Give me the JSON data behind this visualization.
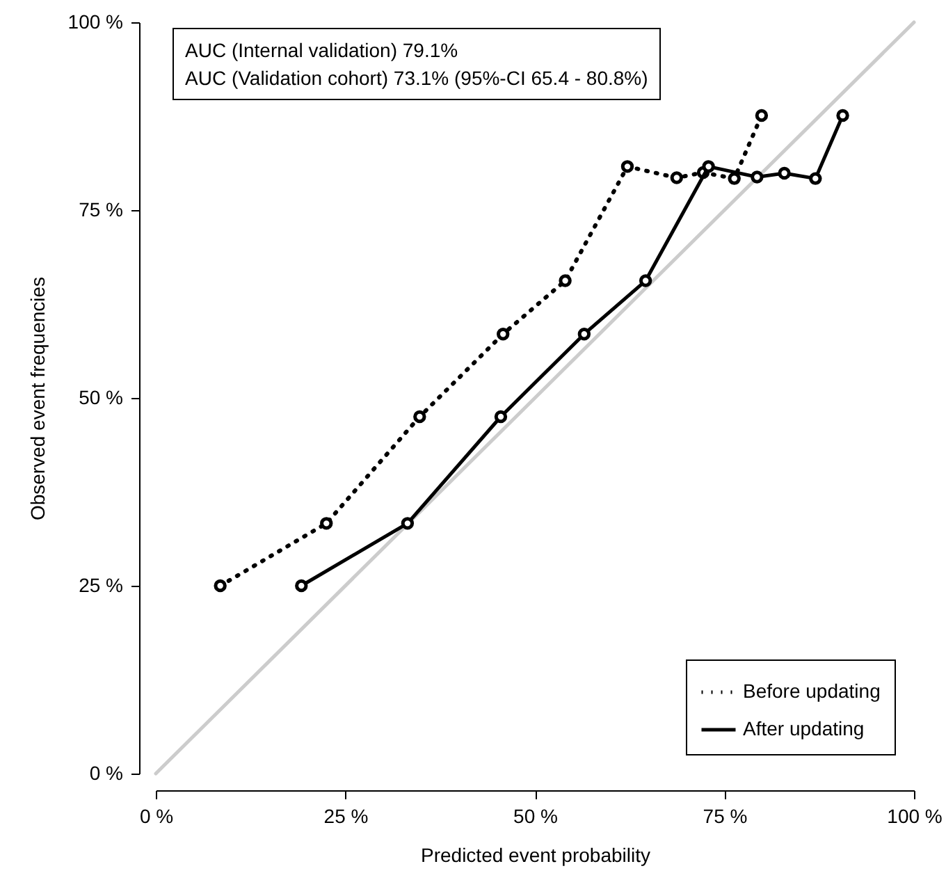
{
  "chart_data": {
    "type": "line",
    "xlabel": "Predicted event probability",
    "ylabel": "Observed event frequencies",
    "annotations": [
      "AUC (Internal validation) 79.1%",
      "AUC (Validation cohort) 73.1% (95%-CI 65.4 - 80.8%)"
    ],
    "xlim": [
      0,
      100
    ],
    "ylim": [
      0,
      100
    ],
    "xticks": [
      {
        "value": 0,
        "label": "0 %"
      },
      {
        "value": 25,
        "label": "25 %"
      },
      {
        "value": 50,
        "label": "50 %"
      },
      {
        "value": 75,
        "label": "75 %"
      },
      {
        "value": 100,
        "label": "100 %"
      }
    ],
    "yticks": [
      {
        "value": 0,
        "label": "0 %"
      },
      {
        "value": 25,
        "label": "25 %"
      },
      {
        "value": 50,
        "label": "50 %"
      },
      {
        "value": 75,
        "label": "75 %"
      },
      {
        "value": 100,
        "label": "100 %"
      }
    ],
    "grid": false,
    "legend": "bottom right",
    "series": [
      {
        "color": "#cccccc",
        "x": [
          0,
          100
        ],
        "values": [
          0,
          100
        ],
        "line_style": "solid",
        "marker": "none"
      },
      {
        "name": "Before updating",
        "color": "#000000",
        "line_style": "dotted",
        "marker": "circle",
        "x": [
          8.5,
          22.5,
          34.8,
          45.8,
          54.0,
          62.2,
          68.7,
          72.2,
          76.3,
          79.9
        ],
        "values": [
          25.0,
          33.3,
          47.5,
          58.5,
          65.6,
          80.8,
          79.3,
          80.0,
          79.2,
          87.6
        ]
      },
      {
        "name": "After updating",
        "color": "#000000",
        "line_style": "solid",
        "marker": "circle",
        "x": [
          19.2,
          33.2,
          45.5,
          56.5,
          64.6,
          72.9,
          79.3,
          82.9,
          87.0,
          90.6
        ],
        "values": [
          25.0,
          33.3,
          47.5,
          58.5,
          65.6,
          80.8,
          79.4,
          79.9,
          79.2,
          87.6
        ]
      }
    ]
  }
}
